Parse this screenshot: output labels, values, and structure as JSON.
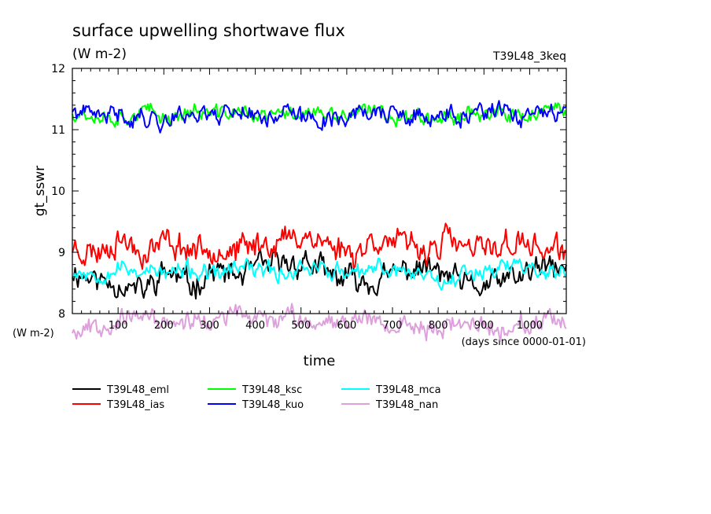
{
  "chart_data": {
    "type": "line",
    "title": "surface upwelling shortwave flux",
    "subtitle": "(W m-2)",
    "run_label": "T39L48_3keq",
    "ylabel": "gt_sswr",
    "xlabel": "time",
    "x_units_label": "(days since 0000-01-01)",
    "y_units_label": "(W m-2)",
    "xlim": [
      0,
      1080
    ],
    "ylim": [
      8,
      12
    ],
    "x_ticks": [
      100,
      200,
      300,
      400,
      500,
      600,
      700,
      800,
      900,
      1000
    ],
    "y_ticks": [
      8,
      9,
      10,
      11,
      12
    ],
    "sample_step_days": 3,
    "legend_position": "below-left",
    "series": [
      {
        "name": "T39L48_eml",
        "color": "#000000",
        "mean": 8.65,
        "amp": 0.16,
        "seed": 11,
        "values_approx": [
          8.7,
          8.55,
          8.5,
          8.35,
          8.7,
          8.45,
          8.7,
          8.6,
          8.75,
          8.8,
          8.85,
          8.6,
          8.55,
          8.5,
          8.7,
          8.75,
          8.6,
          8.4,
          8.5,
          8.6,
          8.75,
          8.7
        ]
      },
      {
        "name": "T39L48_ias",
        "color": "#ff0000",
        "mean": 9.1,
        "amp": 0.17,
        "seed": 23,
        "values_approx": [
          9.1,
          9.0,
          9.25,
          9.0,
          9.2,
          9.05,
          9.1,
          9.0,
          9.15,
          9.2,
          9.3,
          9.1,
          9.0,
          9.25,
          9.1,
          9.05,
          9.2,
          9.0,
          9.1,
          9.15,
          9.05,
          9.0
        ]
      },
      {
        "name": "T39L48_ksc",
        "color": "#00ff00",
        "mean": 11.25,
        "amp": 0.1,
        "seed": 37,
        "values_approx": [
          11.3,
          11.25,
          11.2,
          11.3,
          11.2,
          11.3,
          11.25,
          11.3,
          11.2,
          11.25,
          11.3,
          11.2,
          11.25,
          11.3,
          11.2,
          11.25,
          11.2,
          11.3,
          11.25,
          11.2,
          11.3,
          11.25
        ]
      },
      {
        "name": "T39L48_kuo",
        "color": "#0000ff",
        "mean": 11.2,
        "amp": 0.12,
        "seed": 41,
        "values_approx": [
          11.3,
          11.2,
          11.25,
          11.2,
          11.15,
          11.3,
          11.25,
          11.35,
          11.2,
          11.3,
          11.15,
          11.2,
          11.25,
          11.3,
          11.2,
          11.15,
          11.25,
          11.2,
          11.3,
          11.2,
          11.25,
          11.2
        ]
      },
      {
        "name": "T39L48_mca",
        "color": "#00ffff",
        "mean": 8.7,
        "amp": 0.11,
        "seed": 53,
        "values_approx": [
          8.7,
          8.65,
          8.75,
          8.7,
          8.65,
          8.7,
          8.6,
          8.75,
          8.7,
          8.65,
          8.8,
          8.7,
          8.6,
          8.75,
          8.7,
          8.65,
          8.55,
          8.7,
          8.75,
          8.8,
          8.7,
          8.65
        ]
      },
      {
        "name": "T39L48_nan",
        "color": "#dda0dd",
        "mean": 7.85,
        "amp": 0.12,
        "seed": 67,
        "values_approx": [
          7.75,
          7.8,
          7.9,
          7.95,
          7.85,
          7.9,
          7.85,
          8.0,
          7.9,
          7.95,
          7.85,
          7.9,
          7.95,
          7.9,
          7.8,
          7.75,
          7.8,
          7.85,
          7.75,
          7.8,
          7.85,
          7.8
        ]
      }
    ]
  }
}
